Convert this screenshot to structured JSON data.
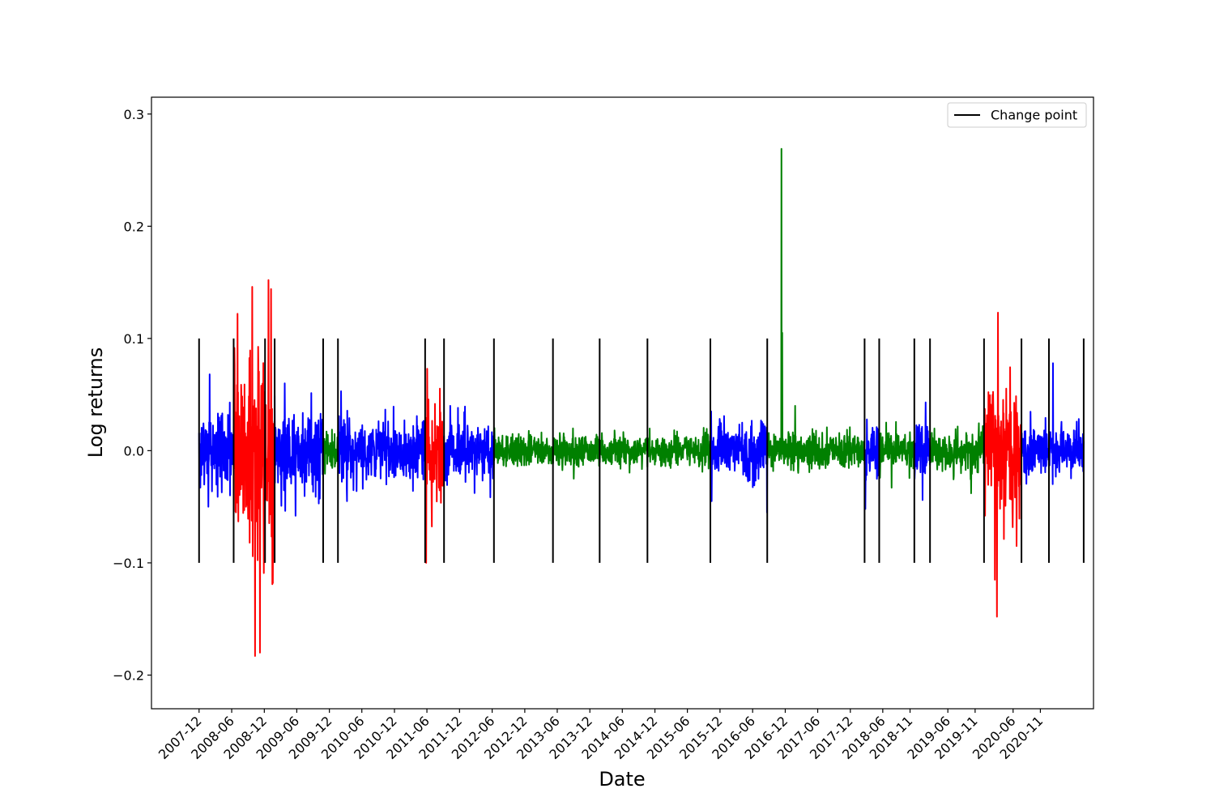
{
  "chart_data": {
    "type": "line",
    "title": "",
    "xlabel": "Date",
    "ylabel": "Log returns",
    "ylim": [
      -0.23,
      0.315
    ],
    "xlim": [
      "2007-03-09",
      "2021-08-26"
    ],
    "grid": false,
    "legend": {
      "placement": "top-right",
      "entries": [
        "Change point"
      ]
    },
    "y_ticks": [
      {
        "value": 0.3,
        "label": "0.3"
      },
      {
        "value": 0.2,
        "label": "0.2"
      },
      {
        "value": 0.1,
        "label": "0.1"
      },
      {
        "value": 0.0,
        "label": "0.0"
      },
      {
        "value": -0.1,
        "label": "−0.1"
      },
      {
        "value": -0.2,
        "label": "−0.2"
      }
    ],
    "x_ticks": [
      {
        "date": "2007-12-01",
        "label": "2007-12"
      },
      {
        "date": "2008-06-01",
        "label": "2008-06"
      },
      {
        "date": "2008-12-01",
        "label": "2008-12"
      },
      {
        "date": "2009-06-01",
        "label": "2009-06"
      },
      {
        "date": "2009-12-01",
        "label": "2009-12"
      },
      {
        "date": "2010-06-01",
        "label": "2010-06"
      },
      {
        "date": "2010-12-01",
        "label": "2010-12"
      },
      {
        "date": "2011-06-01",
        "label": "2011-06"
      },
      {
        "date": "2011-12-01",
        "label": "2011-12"
      },
      {
        "date": "2012-06-01",
        "label": "2012-06"
      },
      {
        "date": "2012-12-01",
        "label": "2012-12"
      },
      {
        "date": "2013-06-01",
        "label": "2013-06"
      },
      {
        "date": "2013-12-01",
        "label": "2013-12"
      },
      {
        "date": "2014-06-01",
        "label": "2014-06"
      },
      {
        "date": "2014-12-01",
        "label": "2014-12"
      },
      {
        "date": "2015-06-01",
        "label": "2015-06"
      },
      {
        "date": "2015-12-01",
        "label": "2015-12"
      },
      {
        "date": "2016-06-01",
        "label": "2016-06"
      },
      {
        "date": "2016-12-01",
        "label": "2016-12"
      },
      {
        "date": "2017-06-01",
        "label": "2017-06"
      },
      {
        "date": "2017-12-01",
        "label": "2017-12"
      },
      {
        "date": "2018-06-01",
        "label": "2018-06"
      },
      {
        "date": "2018-11-01",
        "label": "2018-11"
      },
      {
        "date": "2019-06-01",
        "label": "2019-06"
      },
      {
        "date": "2019-11-01",
        "label": "2019-11"
      },
      {
        "date": "2020-06-01",
        "label": "2020-06"
      },
      {
        "date": "2020-11-01",
        "label": "2020-11"
      }
    ],
    "change_points": {
      "name": "Change point",
      "color": "#000000",
      "y_range": [
        -0.1,
        0.1
      ],
      "dates": [
        "2007-12-01",
        "2008-06-12",
        "2008-12-05",
        "2009-01-28",
        "2009-10-27",
        "2010-01-18",
        "2011-05-22",
        "2011-09-05",
        "2012-06-11",
        "2013-05-08",
        "2014-01-25",
        "2014-10-20",
        "2015-10-08",
        "2016-08-22",
        "2018-02-19",
        "2018-05-12",
        "2018-11-25",
        "2019-02-21",
        "2019-12-21",
        "2020-07-18",
        "2020-12-19",
        "2021-07-02"
      ]
    },
    "segments": [
      {
        "start": "2007-12-01",
        "end": "2008-06-12",
        "regime": "medium",
        "color": "#0000ff",
        "vol": 0.017,
        "extremes": [
          {
            "date": "2008-01-22",
            "value": -0.05
          },
          {
            "date": "2008-01-30",
            "value": 0.068
          }
        ]
      },
      {
        "start": "2008-06-12",
        "end": "2009-01-28",
        "regime": "high",
        "color": "#ff0000",
        "vol": 0.045,
        "extremes": [
          {
            "date": "2008-07-04",
            "value": 0.122
          },
          {
            "date": "2008-09-24",
            "value": 0.146
          },
          {
            "date": "2008-10-10",
            "value": -0.183
          },
          {
            "date": "2008-11-07",
            "value": -0.18
          },
          {
            "date": "2008-12-25",
            "value": 0.152
          },
          {
            "date": "2009-01-18",
            "value": -0.118
          }
        ]
      },
      {
        "start": "2009-01-28",
        "end": "2009-10-27",
        "regime": "medium",
        "color": "#0000ff",
        "vol": 0.019,
        "extremes": [
          {
            "date": "2009-03-26",
            "value": 0.06
          },
          {
            "date": "2009-05-25",
            "value": -0.058
          }
        ]
      },
      {
        "start": "2009-10-27",
        "end": "2010-01-18",
        "regime": "low",
        "color": "#008000",
        "vol": 0.009,
        "extremes": []
      },
      {
        "start": "2010-01-18",
        "end": "2011-05-22",
        "regime": "medium",
        "color": "#0000ff",
        "vol": 0.014,
        "extremes": [
          {
            "date": "2010-02-05",
            "value": 0.053
          },
          {
            "date": "2010-03-10",
            "value": -0.045
          }
        ]
      },
      {
        "start": "2011-05-22",
        "end": "2011-09-05",
        "regime": "high",
        "color": "#ff0000",
        "vol": 0.025,
        "extremes": [
          {
            "date": "2011-05-28",
            "value": -0.1
          },
          {
            "date": "2011-06-02",
            "value": 0.073
          }
        ]
      },
      {
        "start": "2011-09-05",
        "end": "2012-06-11",
        "regime": "medium",
        "color": "#0000ff",
        "vol": 0.013,
        "extremes": [
          {
            "date": "2011-10-10",
            "value": 0.04
          }
        ]
      },
      {
        "start": "2012-06-11",
        "end": "2015-10-08",
        "regime": "low",
        "color": "#008000",
        "vol": 0.007,
        "extremes": [
          {
            "date": "2013-09-01",
            "value": -0.025
          }
        ]
      },
      {
        "start": "2015-10-08",
        "end": "2016-08-22",
        "regime": "medium",
        "color": "#0000ff",
        "vol": 0.012,
        "extremes": [
          {
            "date": "2015-10-12",
            "value": 0.035
          },
          {
            "date": "2015-10-15",
            "value": -0.045
          },
          {
            "date": "2016-08-20",
            "value": -0.055
          }
        ]
      },
      {
        "start": "2016-08-22",
        "end": "2018-02-19",
        "regime": "low",
        "color": "#008000",
        "vol": 0.008,
        "extremes": [
          {
            "date": "2016-11-10",
            "value": 0.269
          },
          {
            "date": "2016-11-14",
            "value": 0.105
          },
          {
            "date": "2017-01-25",
            "value": 0.04
          }
        ]
      },
      {
        "start": "2018-02-19",
        "end": "2018-05-12",
        "regime": "medium",
        "color": "#0000ff",
        "vol": 0.013,
        "extremes": [
          {
            "date": "2018-02-23",
            "value": -0.052
          }
        ]
      },
      {
        "start": "2018-05-12",
        "end": "2018-11-25",
        "regime": "low",
        "color": "#008000",
        "vol": 0.008,
        "extremes": [
          {
            "date": "2018-07-20",
            "value": -0.033
          }
        ]
      },
      {
        "start": "2018-11-25",
        "end": "2019-02-21",
        "regime": "medium",
        "color": "#0000ff",
        "vol": 0.013,
        "extremes": [
          {
            "date": "2019-01-28",
            "value": 0.043
          },
          {
            "date": "2019-01-10",
            "value": -0.044
          }
        ]
      },
      {
        "start": "2019-02-21",
        "end": "2019-12-21",
        "regime": "low",
        "color": "#008000",
        "vol": 0.008,
        "extremes": [
          {
            "date": "2019-10-10",
            "value": -0.038
          }
        ]
      },
      {
        "start": "2019-12-21",
        "end": "2020-07-18",
        "regime": "high",
        "color": "#ff0000",
        "vol": 0.03,
        "extremes": [
          {
            "date": "2020-03-08",
            "value": 0.123
          },
          {
            "date": "2020-03-02",
            "value": -0.148
          },
          {
            "date": "2020-02-20",
            "value": -0.115
          },
          {
            "date": "2020-06-20",
            "value": -0.085
          }
        ]
      },
      {
        "start": "2020-07-18",
        "end": "2021-07-02",
        "regime": "medium",
        "color": "#0000ff",
        "vol": 0.011,
        "extremes": [
          {
            "date": "2021-01-10",
            "value": 0.078
          }
        ]
      }
    ]
  }
}
